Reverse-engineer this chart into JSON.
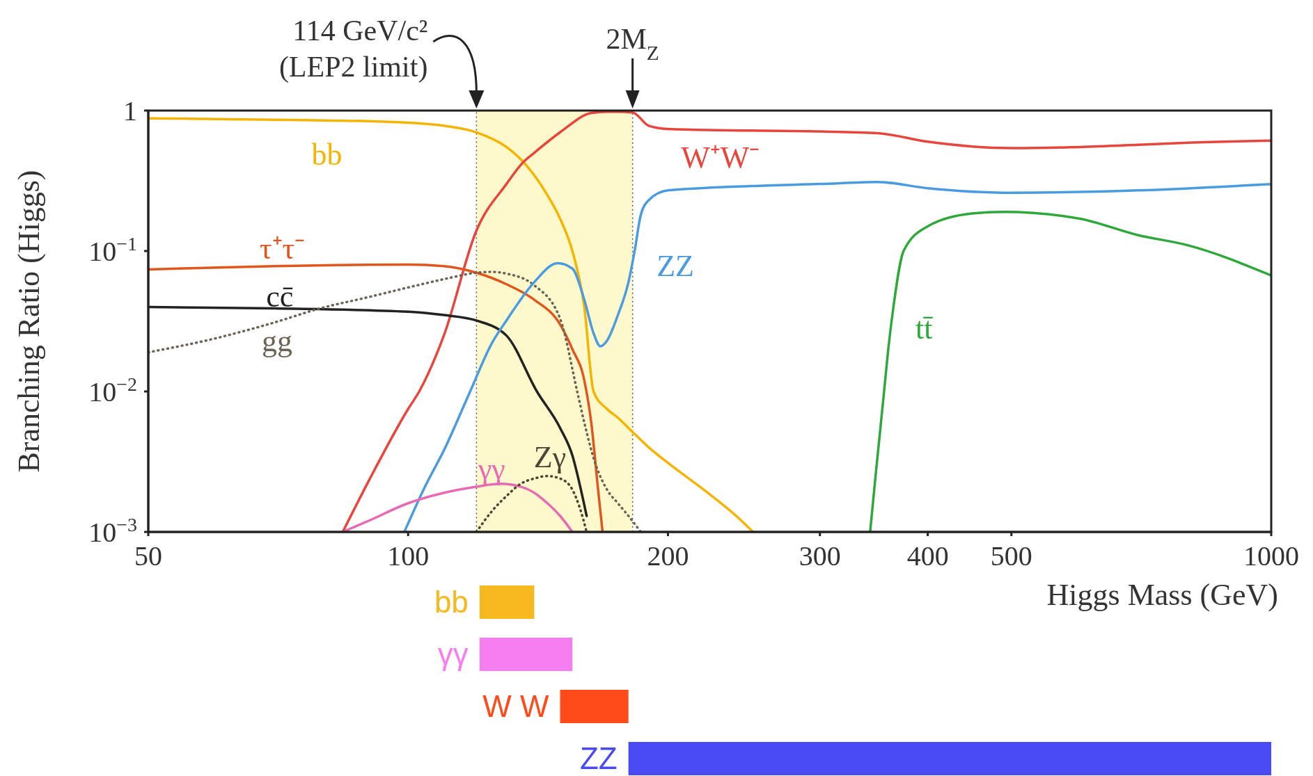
{
  "chart_data": [
    {
      "type": "line",
      "xlabel": "Higgs Mass (GeV)",
      "ylabel": "Branching Ratio (Higgs)",
      "log": "xy",
      "xlim": [
        50,
        1000
      ],
      "ylim": [
        0.001,
        1
      ],
      "xticks": [
        50,
        100,
        200,
        300,
        400,
        500,
        1000
      ],
      "yticks": [
        {
          "value": 0.001,
          "label": "10$^{−3}$"
        },
        {
          "value": 0.01,
          "label": "10$^{−2}$"
        },
        {
          "value": 0.1,
          "label": "10$^{−1}$"
        },
        1
      ],
      "bands": [
        {
          "axis": "x",
          "from": 120,
          "to": 182,
          "color": "#fdf9cc"
        }
      ],
      "annotations": [
        {
          "text": "114 GeV/c²\n(LEP2 limit)",
          "x": 120,
          "y": 1
        },
        {
          "text": "2M$_{Z}$",
          "x": 182,
          "y": 1
        }
      ],
      "series": [
        {
          "name": "bb",
          "color": "#f5b400",
          "x": [
            50,
            60,
            70,
            80,
            90,
            100,
            110,
            120,
            130,
            136,
            145,
            150,
            155,
            160,
            164,
            170,
            175,
            180,
            190,
            200,
            220,
            240,
            251
          ],
          "values": [
            0.88,
            0.87,
            0.86,
            0.85,
            0.84,
            0.82,
            0.78,
            0.7,
            0.55,
            0.43,
            0.25,
            0.17,
            0.1,
            0.04,
            0.01,
            0.0075,
            0.0065,
            0.0055,
            0.004,
            0.0031,
            0.002,
            0.0013,
            0.001
          ]
        },
        {
          "name": "W⁺W⁻",
          "color": "#e8453c",
          "x": [
            84,
            90,
            100,
            103,
            110,
            120,
            130,
            136,
            140,
            150,
            163,
            170,
            175,
            182,
            190,
            200,
            250,
            300,
            350,
            400,
            500,
            600,
            700,
            800,
            1000
          ],
          "values": [
            0.001,
            0.0023,
            0.0075,
            0.01,
            0.025,
            0.14,
            0.3,
            0.43,
            0.5,
            0.7,
            0.96,
            0.98,
            0.98,
            0.97,
            0.78,
            0.74,
            0.72,
            0.71,
            0.69,
            0.6,
            0.54,
            0.55,
            0.57,
            0.59,
            0.61
          ]
        },
        {
          "name": "τ⁺τ⁻",
          "color": "#e0561c",
          "x": [
            50,
            70,
            100,
            110,
            120,
            130,
            140,
            150,
            155,
            160,
            163,
            166,
            168
          ],
          "values": [
            0.074,
            0.078,
            0.08,
            0.078,
            0.07,
            0.058,
            0.045,
            0.03,
            0.02,
            0.012,
            0.006,
            0.002,
            0.001
          ]
        },
        {
          "name": "cc̄",
          "color": "#222222",
          "x": [
            50,
            70,
            100,
            110,
            120,
            130,
            141,
            150,
            155,
            158,
            161
          ],
          "values": [
            0.04,
            0.039,
            0.037,
            0.035,
            0.032,
            0.025,
            0.01,
            0.0055,
            0.0035,
            0.0022,
            0.0013
          ]
        },
        {
          "name": "gg",
          "color": "#6b6455",
          "line_style": "dotted",
          "x": [
            50,
            60,
            70,
            79,
            90,
            100,
            110,
            120,
            125,
            130,
            140,
            150,
            157,
            160,
            165,
            170,
            175,
            180,
            186
          ],
          "values": [
            0.019,
            0.024,
            0.031,
            0.039,
            0.047,
            0.055,
            0.063,
            0.07,
            0.071,
            0.069,
            0.057,
            0.033,
            0.01,
            0.006,
            0.003,
            0.002,
            0.0016,
            0.0013,
            0.001
          ]
        },
        {
          "name": "ZZ",
          "color": "#4a9be0",
          "x": [
            99,
            105,
            110,
            118,
            125,
            130,
            140,
            149,
            155,
            160,
            164,
            167,
            170,
            175,
            180,
            183,
            186,
            190,
            200,
            250,
            300,
            350,
            400,
            500,
            700,
            1000
          ],
          "values": [
            0.001,
            0.0022,
            0.0038,
            0.01,
            0.022,
            0.032,
            0.06,
            0.082,
            0.075,
            0.045,
            0.026,
            0.021,
            0.023,
            0.035,
            0.06,
            0.1,
            0.18,
            0.23,
            0.27,
            0.29,
            0.3,
            0.31,
            0.28,
            0.26,
            0.27,
            0.3
          ]
        },
        {
          "name": "tt̄",
          "color": "#2ea83a",
          "x": [
            343,
            348,
            352,
            356,
            360,
            365,
            375,
            400,
            450,
            490,
            600,
            700,
            800,
            1000
          ],
          "values": [
            0.001,
            0.0025,
            0.005,
            0.01,
            0.02,
            0.04,
            0.1,
            0.15,
            0.185,
            0.19,
            0.17,
            0.13,
            0.11,
            0.067
          ]
        },
        {
          "name": "γγ",
          "color": "#e86ab4",
          "x": [
            84,
            90,
            100,
            110,
            120,
            128,
            135,
            140,
            145,
            150,
            155
          ],
          "values": [
            0.001,
            0.0012,
            0.0016,
            0.0019,
            0.0021,
            0.0022,
            0.0021,
            0.0019,
            0.0016,
            0.0013,
            0.001
          ]
        },
        {
          "name": "Zγ",
          "color": "#4a4535",
          "line_style": "dotted",
          "x": [
            120,
            125,
            130,
            135,
            140,
            145,
            150,
            155,
            158,
            161
          ],
          "values": [
            0.001,
            0.0014,
            0.0018,
            0.0022,
            0.0024,
            0.0025,
            0.0024,
            0.002,
            0.0015,
            0.001
          ]
        }
      ]
    },
    {
      "type": "bar",
      "orientation": "horizontal",
      "log": "x",
      "tick_labels": "y",
      "xlim": [
        50,
        1000
      ],
      "categories": [
        "bb",
        "γγ",
        "W W",
        "ZZ"
      ],
      "base": [
        121,
        121,
        150,
        180
      ],
      "values": [
        19,
        34,
        30,
        820
      ],
      "colors": [
        "#f8b820",
        "#f77ef0",
        "#ff4a1a",
        "#4a4af5"
      ]
    }
  ]
}
